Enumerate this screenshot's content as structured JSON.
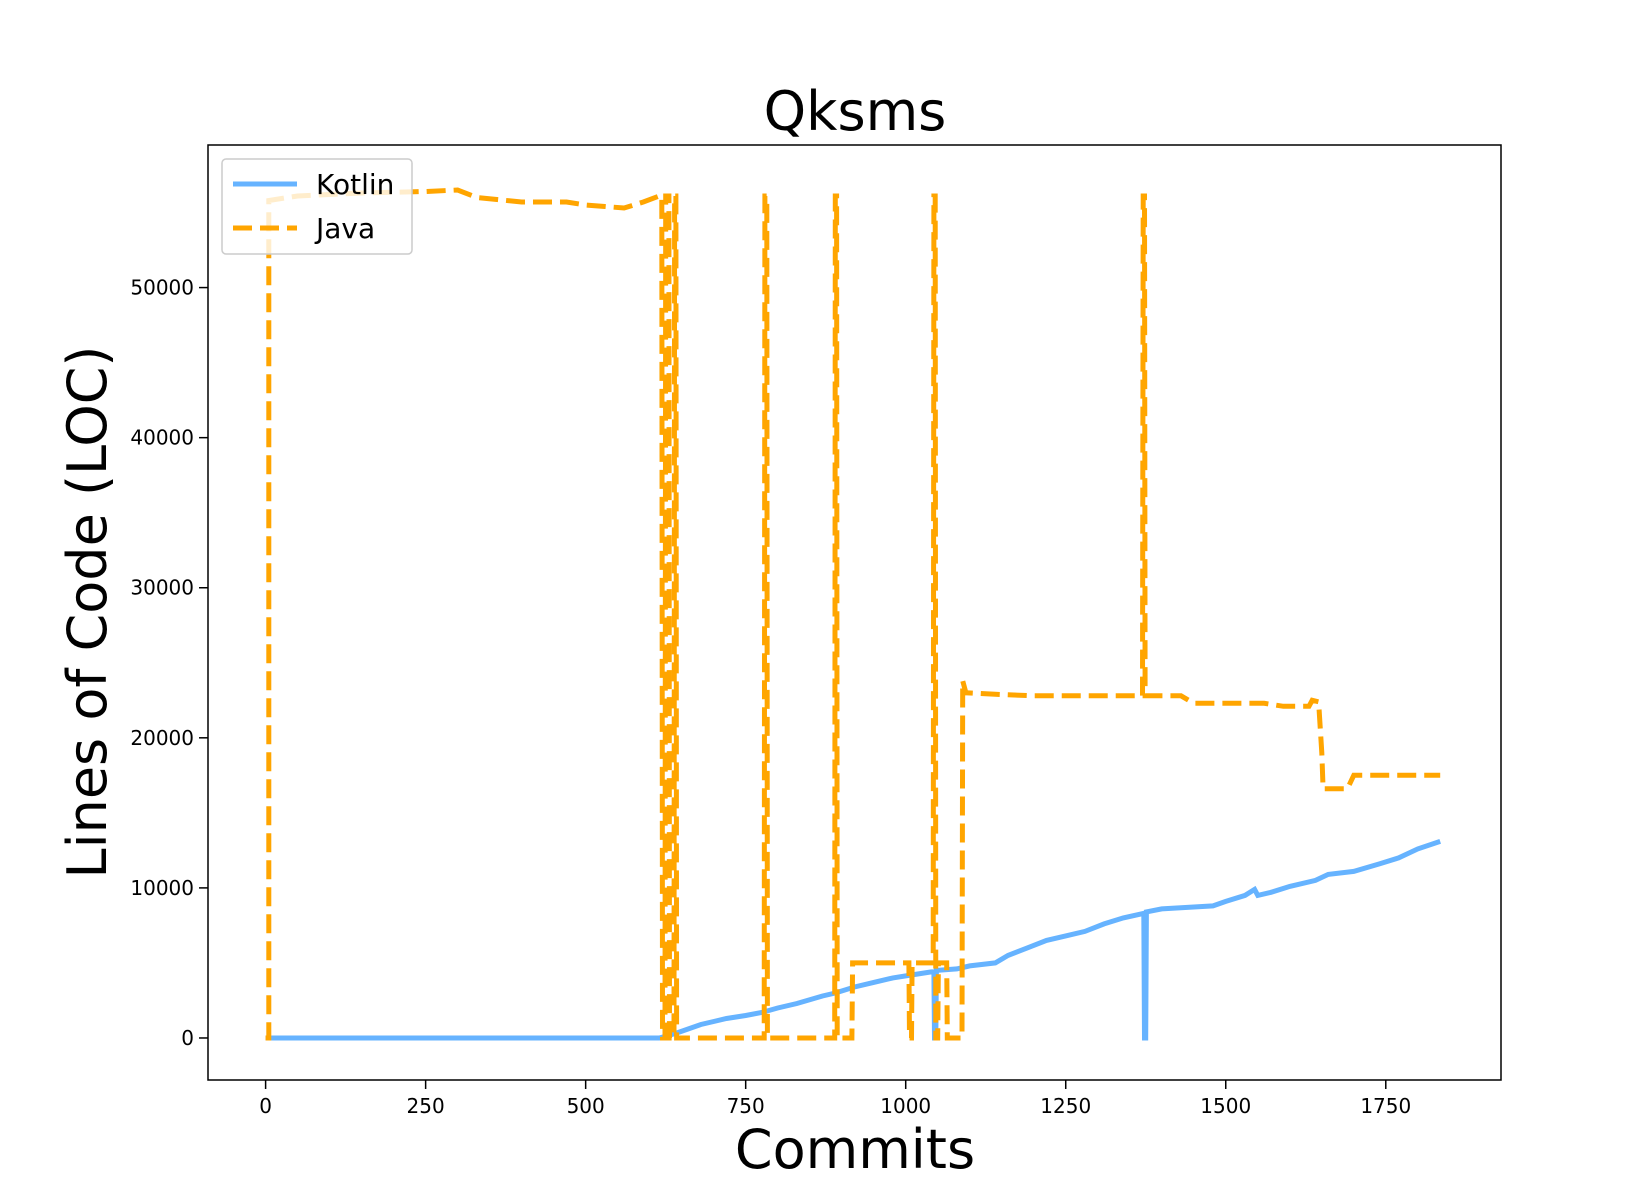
{
  "chart_data": {
    "type": "line",
    "title": "Qksms",
    "xlabel": "Commits",
    "ylabel": "Lines of Code (LOC)",
    "xlim": [
      -90,
      1930
    ],
    "ylim": [
      -2800,
      59500
    ],
    "xticks": [
      0,
      250,
      500,
      750,
      1000,
      1250,
      1500,
      1750
    ],
    "xtick_labels": [
      "0",
      "250",
      "500",
      "750",
      "1000",
      "1250",
      "1500",
      "1750"
    ],
    "yticks": [
      0,
      10000,
      20000,
      30000,
      40000,
      50000
    ],
    "ytick_labels": [
      "0",
      "10000",
      "20000",
      "30000",
      "40000",
      "50000"
    ],
    "grid": false,
    "legend_position": "top-left",
    "series": [
      {
        "name": "Kotlin",
        "color": "#66b3ff",
        "style": "solid",
        "points": [
          [
            0,
            0
          ],
          [
            615,
            0
          ],
          [
            640,
            300
          ],
          [
            660,
            600
          ],
          [
            680,
            900
          ],
          [
            700,
            1100
          ],
          [
            720,
            1300
          ],
          [
            750,
            1500
          ],
          [
            775,
            1700
          ],
          [
            800,
            2000
          ],
          [
            830,
            2300
          ],
          [
            870,
            2800
          ],
          [
            890,
            3000
          ],
          [
            920,
            3400
          ],
          [
            950,
            3700
          ],
          [
            980,
            4000
          ],
          [
            1010,
            4200
          ],
          [
            1040,
            4400
          ],
          [
            1044,
            4400
          ],
          [
            1045,
            0
          ],
          [
            1047,
            0
          ],
          [
            1048,
            4500
          ],
          [
            1080,
            4600
          ],
          [
            1100,
            4800
          ],
          [
            1140,
            5000
          ],
          [
            1160,
            5500
          ],
          [
            1190,
            6000
          ],
          [
            1220,
            6500
          ],
          [
            1250,
            6800
          ],
          [
            1280,
            7100
          ],
          [
            1310,
            7600
          ],
          [
            1340,
            8000
          ],
          [
            1372,
            8300
          ],
          [
            1373,
            0
          ],
          [
            1375,
            0
          ],
          [
            1376,
            8400
          ],
          [
            1400,
            8600
          ],
          [
            1440,
            8700
          ],
          [
            1480,
            8800
          ],
          [
            1500,
            9100
          ],
          [
            1530,
            9500
          ],
          [
            1545,
            9900
          ],
          [
            1550,
            9500
          ],
          [
            1570,
            9700
          ],
          [
            1600,
            10100
          ],
          [
            1640,
            10500
          ],
          [
            1660,
            10900
          ],
          [
            1700,
            11100
          ],
          [
            1740,
            11600
          ],
          [
            1770,
            12000
          ],
          [
            1800,
            12600
          ],
          [
            1835,
            13100
          ]
        ]
      },
      {
        "name": "Java",
        "color": "#ffa500",
        "style": "dashed",
        "points": [
          [
            0,
            0
          ],
          [
            5,
            0
          ],
          [
            5,
            55800
          ],
          [
            50,
            56100
          ],
          [
            150,
            56300
          ],
          [
            250,
            56400
          ],
          [
            300,
            56500
          ],
          [
            330,
            56000
          ],
          [
            400,
            55700
          ],
          [
            470,
            55700
          ],
          [
            500,
            55500
          ],
          [
            530,
            55400
          ],
          [
            560,
            55300
          ],
          [
            590,
            55700
          ],
          [
            615,
            56100
          ],
          [
            619,
            56100
          ],
          [
            620,
            0
          ],
          [
            624,
            0
          ],
          [
            625,
            56100
          ],
          [
            630,
            56100
          ],
          [
            631,
            0
          ],
          [
            638,
            0
          ],
          [
            639,
            56100
          ],
          [
            641,
            56100
          ],
          [
            642,
            0
          ],
          [
            779,
            0
          ],
          [
            780,
            56100
          ],
          [
            783,
            56100
          ],
          [
            784,
            0
          ],
          [
            889,
            0
          ],
          [
            890,
            56100
          ],
          [
            892,
            56100
          ],
          [
            893,
            0
          ],
          [
            916,
            0
          ],
          [
            917,
            5000
          ],
          [
            1005,
            5000
          ],
          [
            1006,
            0
          ],
          [
            1009,
            0
          ],
          [
            1010,
            5000
          ],
          [
            1043,
            5000
          ],
          [
            1044,
            56100
          ],
          [
            1046,
            56100
          ],
          [
            1047,
            0
          ],
          [
            1050,
            0
          ],
          [
            1051,
            5000
          ],
          [
            1064,
            5000
          ],
          [
            1065,
            0
          ],
          [
            1088,
            0
          ],
          [
            1089,
            23800
          ],
          [
            1094,
            23000
          ],
          [
            1140,
            22900
          ],
          [
            1200,
            22800
          ],
          [
            1370,
            22800
          ],
          [
            1371,
            56100
          ],
          [
            1373,
            56100
          ],
          [
            1374,
            22800
          ],
          [
            1430,
            22800
          ],
          [
            1450,
            22300
          ],
          [
            1560,
            22300
          ],
          [
            1590,
            22100
          ],
          [
            1630,
            22100
          ],
          [
            1635,
            22500
          ],
          [
            1645,
            22400
          ],
          [
            1650,
            19000
          ],
          [
            1652,
            16600
          ],
          [
            1690,
            16600
          ],
          [
            1700,
            17500
          ],
          [
            1835,
            17500
          ]
        ]
      }
    ]
  }
}
